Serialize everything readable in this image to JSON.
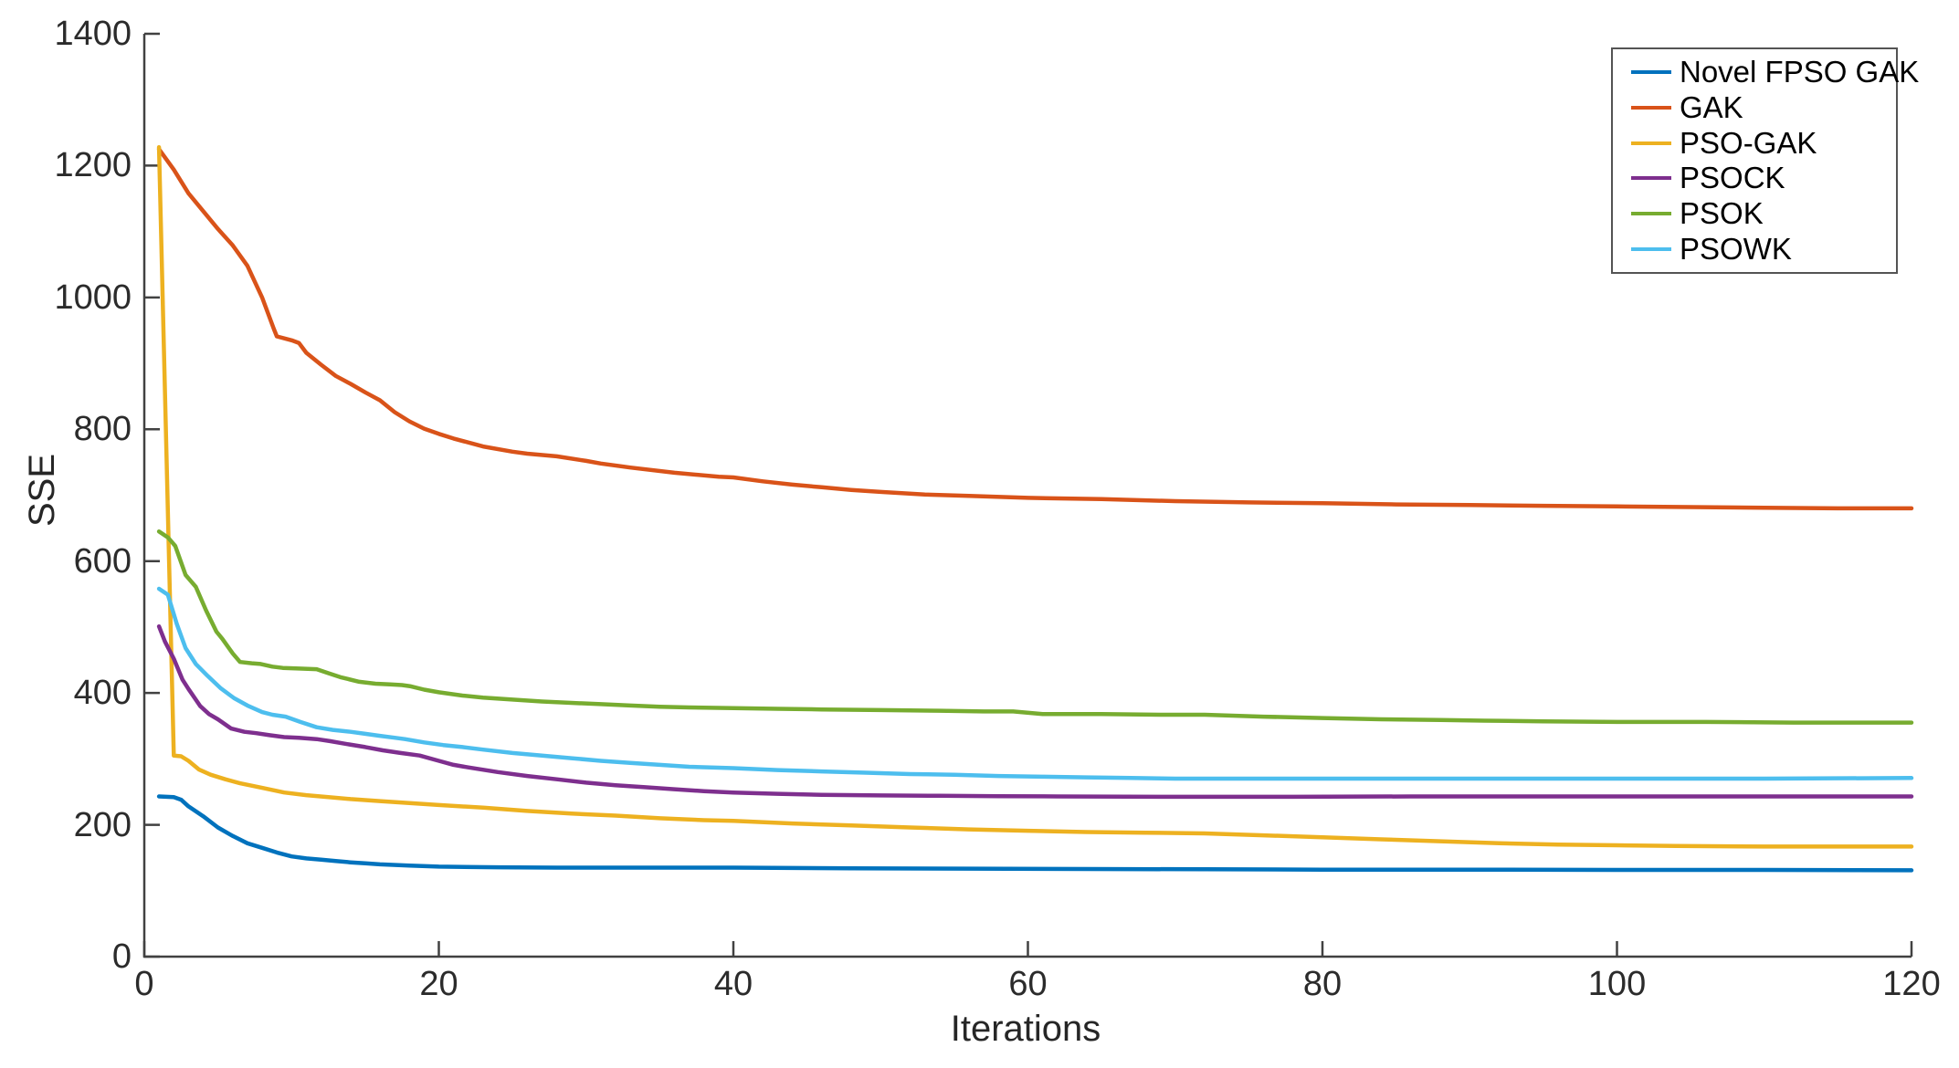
{
  "figure": {
    "background": "#ffffff",
    "axis_color": "#414141",
    "tick_label_color": "#2b2b2b"
  },
  "chart_data": {
    "type": "line",
    "title": "",
    "xlabel": "Iterations",
    "ylabel": "SSE",
    "xlim": [
      0,
      120
    ],
    "ylim": [
      0,
      1400
    ],
    "xticks": [
      0,
      20,
      40,
      60,
      80,
      100,
      120
    ],
    "yticks": [
      0,
      200,
      400,
      600,
      800,
      1000,
      1200,
      1400
    ],
    "grid": false,
    "legend_position": "top-right",
    "series": [
      {
        "name": "Novel FPSO GAK",
        "color": "#0072BD",
        "points": [
          [
            1,
            243
          ],
          [
            2,
            242
          ],
          [
            2.5,
            238
          ],
          [
            3,
            228
          ],
          [
            4,
            213
          ],
          [
            5,
            196
          ],
          [
            6,
            183
          ],
          [
            7,
            172
          ],
          [
            8,
            165
          ],
          [
            9,
            158
          ],
          [
            10,
            152
          ],
          [
            11,
            149
          ],
          [
            12,
            147
          ],
          [
            13,
            145
          ],
          [
            14,
            143
          ],
          [
            15,
            141.5
          ],
          [
            16,
            140
          ],
          [
            18,
            138
          ],
          [
            20,
            136.5
          ],
          [
            24,
            135.5
          ],
          [
            28,
            135
          ],
          [
            34,
            135
          ],
          [
            40,
            135
          ],
          [
            48,
            134
          ],
          [
            56,
            133.5
          ],
          [
            64,
            133
          ],
          [
            72,
            132.5
          ],
          [
            80,
            132
          ],
          [
            90,
            132
          ],
          [
            100,
            131.5
          ],
          [
            110,
            131.5
          ],
          [
            120,
            131
          ]
        ]
      },
      {
        "name": "GAK",
        "color": "#D95319",
        "points": [
          [
            1,
            1225
          ],
          [
            2,
            1194
          ],
          [
            3,
            1158
          ],
          [
            4,
            1131
          ],
          [
            5,
            1104
          ],
          [
            6,
            1079
          ],
          [
            7,
            1048
          ],
          [
            8,
            1000
          ],
          [
            8.8,
            952
          ],
          [
            9,
            941
          ],
          [
            10,
            935
          ],
          [
            10.5,
            931
          ],
          [
            11,
            916
          ],
          [
            12,
            898
          ],
          [
            13,
            881
          ],
          [
            14,
            869
          ],
          [
            15,
            856
          ],
          [
            16,
            844
          ],
          [
            17,
            826
          ],
          [
            18,
            812
          ],
          [
            19,
            801
          ],
          [
            20,
            793
          ],
          [
            21,
            786
          ],
          [
            23,
            774
          ],
          [
            25,
            766
          ],
          [
            26,
            763
          ],
          [
            28,
            759
          ],
          [
            30,
            752
          ],
          [
            31,
            748
          ],
          [
            33,
            742
          ],
          [
            36,
            734
          ],
          [
            39,
            728
          ],
          [
            40,
            727
          ],
          [
            42,
            721
          ],
          [
            44,
            716
          ],
          [
            46,
            712
          ],
          [
            48,
            708
          ],
          [
            50,
            705
          ],
          [
            53,
            701
          ],
          [
            56,
            699
          ],
          [
            60,
            696
          ],
          [
            65,
            694
          ],
          [
            70,
            691
          ],
          [
            75,
            689
          ],
          [
            80,
            688
          ],
          [
            85,
            686
          ],
          [
            90,
            685
          ],
          [
            95,
            684
          ],
          [
            100,
            683
          ],
          [
            105,
            682
          ],
          [
            110,
            681
          ],
          [
            115,
            680
          ],
          [
            120,
            680
          ]
        ]
      },
      {
        "name": "PSO-GAK",
        "color": "#EDB120",
        "points": [
          [
            1,
            1228
          ],
          [
            2,
            305
          ],
          [
            2.5,
            304
          ],
          [
            3,
            297
          ],
          [
            3.7,
            284
          ],
          [
            4.5,
            276
          ],
          [
            5.5,
            269
          ],
          [
            6.5,
            263
          ],
          [
            8,
            256
          ],
          [
            9.5,
            249
          ],
          [
            11,
            245
          ],
          [
            12.5,
            242
          ],
          [
            14,
            239
          ],
          [
            16,
            236
          ],
          [
            18,
            233
          ],
          [
            20,
            230
          ],
          [
            23,
            226
          ],
          [
            26,
            221
          ],
          [
            29,
            217
          ],
          [
            32,
            214
          ],
          [
            35,
            210
          ],
          [
            38,
            207
          ],
          [
            40,
            206
          ],
          [
            44,
            202
          ],
          [
            48,
            199
          ],
          [
            52,
            196
          ],
          [
            56,
            193
          ],
          [
            60,
            191
          ],
          [
            64,
            189
          ],
          [
            68,
            188
          ],
          [
            72,
            187
          ],
          [
            76,
            184
          ],
          [
            80,
            181
          ],
          [
            84,
            178
          ],
          [
            88,
            175
          ],
          [
            92,
            172
          ],
          [
            96,
            170
          ],
          [
            100,
            169
          ],
          [
            104,
            168
          ],
          [
            110,
            167
          ],
          [
            115,
            167
          ],
          [
            120,
            167
          ]
        ]
      },
      {
        "name": "PSOCK",
        "color": "#7E2F8E",
        "points": [
          [
            1,
            501
          ],
          [
            1.4,
            478
          ],
          [
            2,
            452
          ],
          [
            2.6,
            420
          ],
          [
            3,
            406
          ],
          [
            3.8,
            380
          ],
          [
            4.4,
            368
          ],
          [
            5,
            360
          ],
          [
            5.9,
            346
          ],
          [
            6.8,
            341
          ],
          [
            7.6,
            339
          ],
          [
            8.5,
            336
          ],
          [
            9.5,
            333
          ],
          [
            10.5,
            332
          ],
          [
            11.7,
            330
          ],
          [
            12.6,
            327
          ],
          [
            13.6,
            323
          ],
          [
            15,
            318
          ],
          [
            16.2,
            313
          ],
          [
            17.4,
            309
          ],
          [
            18.7,
            305
          ],
          [
            20,
            297
          ],
          [
            21,
            291
          ],
          [
            22,
            287
          ],
          [
            24,
            280
          ],
          [
            26,
            274
          ],
          [
            28,
            269
          ],
          [
            30,
            264
          ],
          [
            32,
            260
          ],
          [
            34,
            257
          ],
          [
            36,
            254
          ],
          [
            38,
            251
          ],
          [
            40,
            249
          ],
          [
            43,
            247
          ],
          [
            46,
            245.5
          ],
          [
            50,
            244.5
          ],
          [
            54,
            244
          ],
          [
            58,
            243.5
          ],
          [
            62,
            243
          ],
          [
            70,
            242.5
          ],
          [
            78,
            242.5
          ],
          [
            86,
            243
          ],
          [
            94,
            243
          ],
          [
            102,
            243
          ],
          [
            110,
            243
          ],
          [
            120,
            243
          ]
        ]
      },
      {
        "name": "PSOK",
        "color": "#77AC30",
        "points": [
          [
            1,
            645
          ],
          [
            1.6,
            636
          ],
          [
            2.1,
            623
          ],
          [
            2.8,
            579
          ],
          [
            3.5,
            561
          ],
          [
            4.2,
            525
          ],
          [
            4.9,
            493
          ],
          [
            5.3,
            482
          ],
          [
            6,
            460
          ],
          [
            6.5,
            447
          ],
          [
            7.3,
            445
          ],
          [
            7.9,
            444
          ],
          [
            8.7,
            440
          ],
          [
            9.4,
            438
          ],
          [
            10.5,
            437
          ],
          [
            11.7,
            436
          ],
          [
            12.5,
            430
          ],
          [
            13.3,
            424
          ],
          [
            14.6,
            417
          ],
          [
            15.7,
            414
          ],
          [
            16.7,
            413
          ],
          [
            17.5,
            412
          ],
          [
            18.1,
            410
          ],
          [
            19,
            405
          ],
          [
            20,
            401
          ],
          [
            21.6,
            396
          ],
          [
            23,
            393
          ],
          [
            25,
            390
          ],
          [
            27,
            387
          ],
          [
            29,
            385
          ],
          [
            31,
            383
          ],
          [
            33,
            381
          ],
          [
            35,
            379
          ],
          [
            37,
            378
          ],
          [
            40,
            377
          ],
          [
            43,
            376
          ],
          [
            46,
            375
          ],
          [
            50,
            374
          ],
          [
            54,
            373
          ],
          [
            57,
            372
          ],
          [
            59,
            372
          ],
          [
            61,
            368
          ],
          [
            65,
            368
          ],
          [
            69,
            367
          ],
          [
            72,
            367
          ],
          [
            76,
            364
          ],
          [
            80,
            362
          ],
          [
            84,
            360
          ],
          [
            88,
            359
          ],
          [
            91,
            358
          ],
          [
            95,
            357
          ],
          [
            100,
            356
          ],
          [
            106,
            356
          ],
          [
            112,
            355
          ],
          [
            120,
            355
          ]
        ]
      },
      {
        "name": "PSOWK",
        "color": "#4DBEEE",
        "points": [
          [
            1,
            558
          ],
          [
            1.6,
            549
          ],
          [
            2.2,
            505
          ],
          [
            2.8,
            468
          ],
          [
            3.5,
            444
          ],
          [
            4.3,
            426
          ],
          [
            5.2,
            407
          ],
          [
            6.1,
            392
          ],
          [
            7,
            381
          ],
          [
            8,
            371
          ],
          [
            8.7,
            367
          ],
          [
            9.6,
            364
          ],
          [
            10.6,
            356
          ],
          [
            11.7,
            348
          ],
          [
            12.8,
            344
          ],
          [
            14,
            341
          ],
          [
            15,
            338
          ],
          [
            16,
            335
          ],
          [
            17,
            332
          ],
          [
            17.7,
            330
          ],
          [
            19,
            325
          ],
          [
            20.3,
            321
          ],
          [
            21.6,
            318
          ],
          [
            23,
            314
          ],
          [
            25,
            309
          ],
          [
            27,
            305
          ],
          [
            29,
            301
          ],
          [
            31,
            297
          ],
          [
            33,
            294
          ],
          [
            35,
            291
          ],
          [
            37,
            288
          ],
          [
            40,
            286
          ],
          [
            43,
            283
          ],
          [
            46,
            281
          ],
          [
            49,
            279
          ],
          [
            52,
            277
          ],
          [
            55,
            276
          ],
          [
            58,
            274
          ],
          [
            61,
            273
          ],
          [
            64,
            272
          ],
          [
            67,
            271
          ],
          [
            70,
            270
          ],
          [
            80,
            270
          ],
          [
            90,
            270
          ],
          [
            100,
            270
          ],
          [
            110,
            270
          ],
          [
            120,
            271
          ]
        ]
      }
    ]
  }
}
